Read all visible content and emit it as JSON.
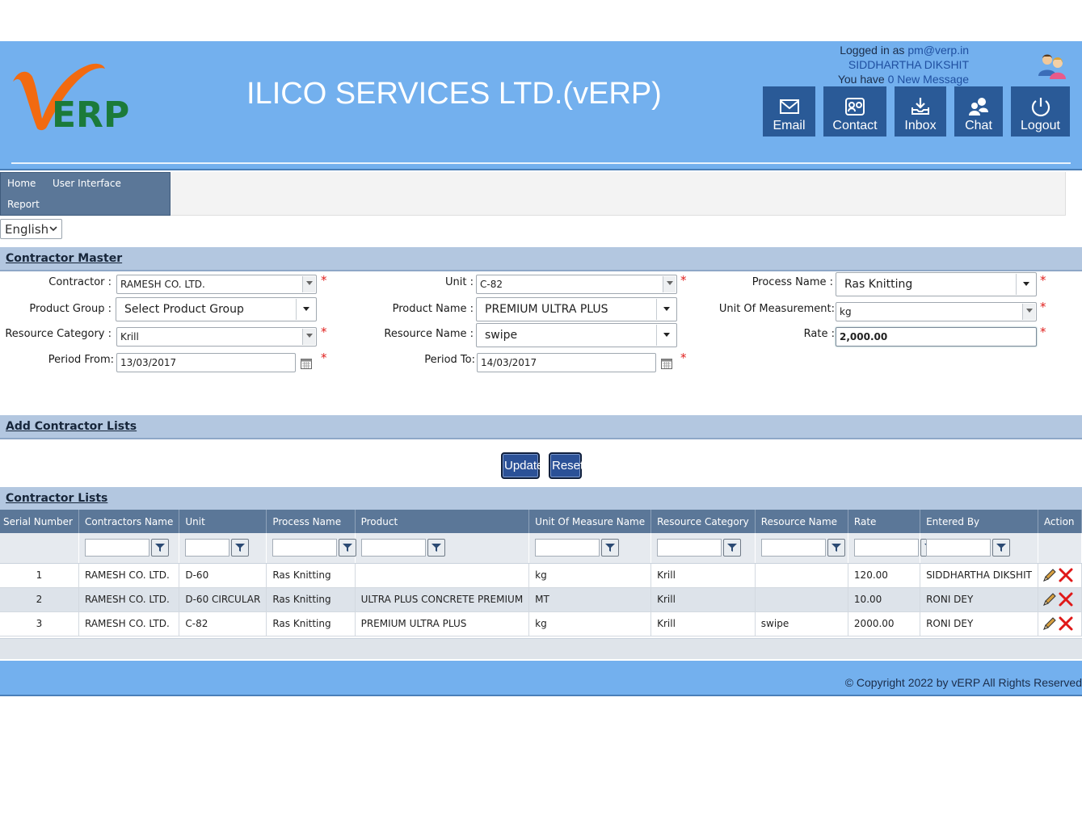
{
  "header": {
    "title": "ILICO SERVICES LTD.(vERP)",
    "logged_in_prefix": "Logged in as",
    "email": "pm@verp.in",
    "user_name": "SIDDHARTHA DIKSHIT",
    "message_prefix": "You have",
    "message_link": "0 New Message",
    "buttons": [
      {
        "label": "Email",
        "icon": "envelope-icon"
      },
      {
        "label": "Contact",
        "icon": "contact-card-icon"
      },
      {
        "label": "Inbox",
        "icon": "inbox-download-icon"
      },
      {
        "label": "Chat",
        "icon": "chat-users-icon"
      },
      {
        "label": "Logout",
        "icon": "power-icon"
      }
    ]
  },
  "nav": {
    "home": "Home",
    "user_interface": "User Interface",
    "report": "Report"
  },
  "language": {
    "selected": "English"
  },
  "sections": {
    "contractor_master": "Contractor Master",
    "add_contractor_lists": "Add Contractor Lists",
    "contractor_lists": "Contractor Lists"
  },
  "form": {
    "contractor_label": "Contractor :",
    "contractor_value": "RAMESH CO. LTD.",
    "unit_label": "Unit :",
    "unit_value": "C-82",
    "process_name_label": "Process Name :",
    "process_name_value": "Ras Knitting",
    "product_group_label": "Product Group :",
    "product_group_value": "Select Product Group",
    "product_name_label": "Product Name :",
    "product_name_value": "PREMIUM ULTRA PLUS",
    "uom_label": "Unit Of Measurement:",
    "uom_value": "kg",
    "resource_category_label": "Resource Category :",
    "resource_category_value": "Krill",
    "resource_name_label": "Resource Name :",
    "resource_name_value": "swipe",
    "rate_label": "Rate :",
    "rate_value": "2,000.00",
    "period_from_label": "Period From:",
    "period_from_value": "13/03/2017",
    "period_to_label": "Period To:",
    "period_to_value": "14/03/2017",
    "required_mark": "*"
  },
  "actions": {
    "update": "Update",
    "reset": "Reset"
  },
  "table": {
    "columns": [
      "Serial Number",
      "Contractors Name",
      "Unit",
      "Process Name",
      "Product",
      "Unit Of Measure Name",
      "Resource Category",
      "Resource Name",
      "Rate",
      "Entered By",
      "Action"
    ],
    "rows": [
      [
        "1",
        "RAMESH CO. LTD.",
        "D-60",
        "Ras Knitting",
        "",
        "kg",
        "Krill",
        "",
        "120.00",
        "SIDDHARTHA DIKSHIT"
      ],
      [
        "2",
        "RAMESH CO. LTD.",
        "D-60 CIRCULAR",
        "Ras Knitting",
        "ULTRA PLUS CONCRETE PREMIUM",
        "MT",
        "Krill",
        "",
        "10.00",
        "RONI DEY"
      ],
      [
        "3",
        "RAMESH CO. LTD.",
        "C-82",
        "Ras Knitting",
        "PREMIUM ULTRA PLUS",
        "kg",
        "Krill",
        "swipe",
        "2000.00",
        "RONI DEY"
      ]
    ]
  },
  "footer": {
    "copyright": "© Copyright 2022 by vERP All Rights Reserved"
  },
  "colors": {
    "header_bg": "#73b0ee",
    "header_button": "#2a5a97",
    "nav_bg": "#5b7798",
    "section_bar": "#b3c7e0",
    "required": "#e0201e",
    "logo_orange": "#f26a10",
    "logo_green": "#1b7a3a"
  }
}
